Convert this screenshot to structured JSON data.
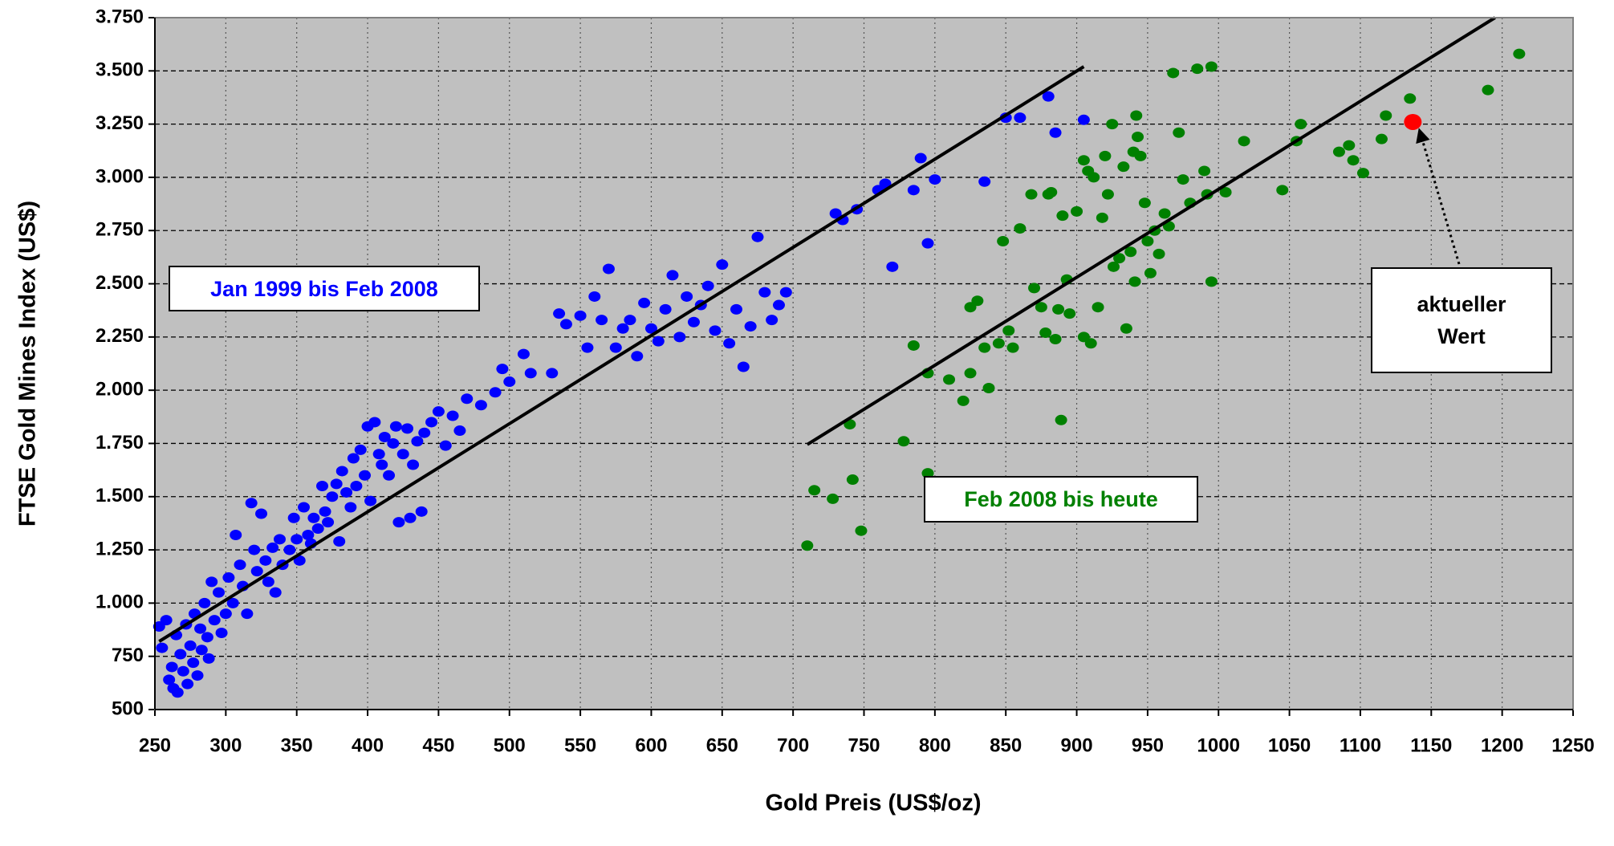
{
  "chart_data": {
    "type": "scatter",
    "xlabel": "Gold Preis (US$/oz)",
    "ylabel": "FTSE Gold Mines Index (US$)",
    "xlim": [
      250,
      1250
    ],
    "xticks": [
      250,
      300,
      350,
      400,
      450,
      500,
      550,
      600,
      650,
      700,
      750,
      800,
      850,
      900,
      950,
      1000,
      1050,
      1100,
      1150,
      1200,
      1250
    ],
    "ylim": [
      500,
      3750
    ],
    "yticks": [
      500,
      750,
      {
        "value": 1000,
        "label": "1.000"
      },
      {
        "value": 1250,
        "label": "1.250"
      },
      {
        "value": 1500,
        "label": "1.500"
      },
      {
        "value": 1750,
        "label": "1.750"
      },
      {
        "value": 2000,
        "label": "2.000"
      },
      {
        "value": 2250,
        "label": "2.250"
      },
      {
        "value": 2500,
        "label": "2.500"
      },
      {
        "value": 2750,
        "label": "2.750"
      },
      {
        "value": 3000,
        "label": "3.000"
      },
      {
        "value": 3250,
        "label": "3.250"
      },
      {
        "value": 3500,
        "label": "3.500"
      },
      {
        "value": 3750,
        "label": "3.750"
      }
    ],
    "grid": true,
    "series": [
      {
        "name": "Jan 1999 bis Feb 2008",
        "color": "#0000ff",
        "x": [
          253,
          255,
          258,
          260,
          262,
          263,
          265,
          266,
          268,
          270,
          272,
          273,
          275,
          277,
          278,
          280,
          282,
          283,
          285,
          287,
          288,
          290,
          292,
          295,
          297,
          300,
          302,
          305,
          307,
          310,
          312,
          315,
          318,
          320,
          322,
          325,
          328,
          330,
          333,
          335,
          338,
          340,
          345,
          348,
          350,
          352,
          355,
          358,
          360,
          362,
          365,
          368,
          370,
          372,
          375,
          378,
          380,
          382,
          385,
          388,
          390,
          392,
          395,
          398,
          400,
          402,
          405,
          408,
          410,
          412,
          415,
          418,
          420,
          422,
          425,
          428,
          430,
          432,
          435,
          438,
          440,
          445,
          450,
          455,
          460,
          465,
          470,
          480,
          490,
          495,
          500,
          510,
          515,
          530,
          535,
          540,
          550,
          555,
          560,
          565,
          570,
          575,
          580,
          585,
          590,
          595,
          600,
          605,
          610,
          615,
          620,
          625,
          630,
          635,
          640,
          645,
          650,
          655,
          660,
          665,
          670,
          675,
          680,
          685,
          690,
          695,
          770,
          730,
          735,
          745,
          760,
          765,
          785,
          790,
          795,
          800,
          835,
          850,
          860,
          880,
          885,
          905
        ],
        "values": [
          890,
          790,
          920,
          640,
          700,
          600,
          850,
          580,
          760,
          680,
          900,
          620,
          800,
          720,
          950,
          660,
          880,
          780,
          1000,
          840,
          740,
          1100,
          920,
          1050,
          860,
          950,
          1120,
          1000,
          1320,
          1180,
          1080,
          950,
          1470,
          1250,
          1150,
          1420,
          1200,
          1100,
          1260,
          1050,
          1300,
          1180,
          1250,
          1400,
          1300,
          1200,
          1450,
          1320,
          1280,
          1400,
          1350,
          1550,
          1430,
          1380,
          1500,
          1560,
          1290,
          1620,
          1520,
          1450,
          1680,
          1550,
          1720,
          1600,
          1830,
          1480,
          1850,
          1700,
          1650,
          1780,
          1600,
          1750,
          1830,
          1380,
          1700,
          1820,
          1400,
          1650,
          1760,
          1430,
          1800,
          1850,
          1900,
          1740,
          1880,
          1810,
          1960,
          1930,
          1990,
          2100,
          2040,
          2170,
          2080,
          2080,
          2360,
          2310,
          2350,
          2200,
          2440,
          2330,
          2570,
          2200,
          2290,
          2330,
          2160,
          2410,
          2290,
          2230,
          2380,
          2540,
          2250,
          2440,
          2320,
          2400,
          2490,
          2280,
          2590,
          2220,
          2380,
          2110,
          2300,
          2720,
          2460,
          2330,
          2400,
          2460,
          2580,
          2830,
          2800,
          2850,
          2940,
          2970,
          2940,
          3090,
          2690,
          2990,
          2980,
          3280,
          3280,
          3380,
          3210,
          3270
        ]
      },
      {
        "name": "Feb 2008 bis heute",
        "color": "#008000",
        "x": [
          710,
          715,
          728,
          740,
          742,
          748,
          778,
          785,
          795,
          795,
          810,
          820,
          825,
          825,
          830,
          835,
          838,
          845,
          848,
          852,
          855,
          860,
          868,
          870,
          875,
          878,
          880,
          882,
          885,
          887,
          889,
          890,
          893,
          895,
          900,
          905,
          905,
          908,
          910,
          912,
          915,
          918,
          920,
          922,
          925,
          926,
          930,
          933,
          935,
          938,
          940,
          941,
          942,
          943,
          945,
          948,
          950,
          952,
          955,
          958,
          962,
          965,
          968,
          972,
          975,
          980,
          985,
          990,
          992,
          995,
          995,
          1005,
          1018,
          1045,
          1055,
          1058,
          1085,
          1092,
          1095,
          1102,
          1115,
          1118,
          1135,
          1190,
          1212
        ],
        "values": [
          1270,
          1530,
          1490,
          1840,
          1580,
          1340,
          1760,
          2210,
          2080,
          1610,
          2050,
          1950,
          2390,
          2080,
          2420,
          2200,
          2010,
          2220,
          2700,
          2280,
          2200,
          2760,
          2920,
          2480,
          2390,
          2270,
          2920,
          2930,
          2240,
          2380,
          1860,
          2820,
          2520,
          2360,
          2840,
          3080,
          2250,
          3030,
          2220,
          3000,
          2390,
          2810,
          3100,
          2920,
          3250,
          2580,
          2620,
          3050,
          2290,
          2650,
          3120,
          2510,
          3290,
          3190,
          3100,
          2880,
          2700,
          2550,
          2750,
          2640,
          2830,
          2770,
          3490,
          3210,
          2990,
          2880,
          3510,
          3030,
          2920,
          3520,
          2510,
          2930,
          3170,
          2940,
          3170,
          3250,
          3120,
          3150,
          3080,
          3020,
          3180,
          3290,
          3370,
          3410,
          3580
        ]
      },
      {
        "name": "aktueller Wert",
        "color": "#ff0000",
        "x": [
          1137
        ],
        "values": [
          3260
        ]
      }
    ],
    "trendlines": [
      {
        "color": "#000000",
        "x": [
          253,
          905
        ],
        "values": [
          820,
          3520
        ]
      },
      {
        "color": "#000000",
        "x": [
          710,
          1195
        ],
        "values": [
          1745,
          3750
        ]
      }
    ]
  }
}
